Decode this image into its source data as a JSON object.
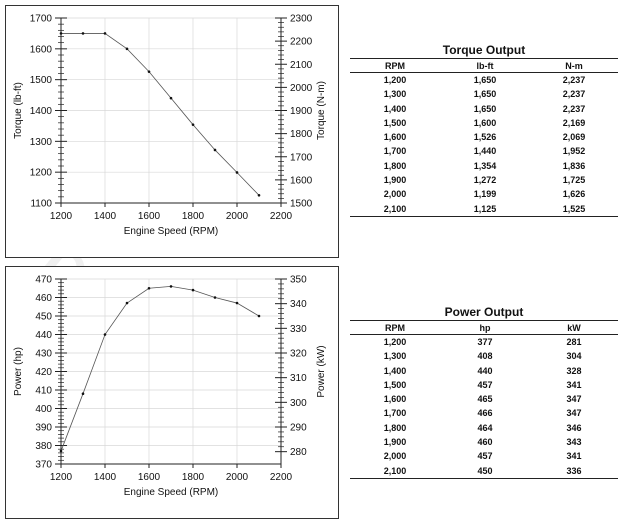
{
  "watermark": "DURAMAC",
  "chart_data": [
    {
      "type": "line",
      "id": "torque",
      "xlabel": "Engine Speed (RPM)",
      "ylabel": "Torque (lb-ft)",
      "y2label": "Torque (N-m)",
      "xlim": [
        1200,
        2200
      ],
      "ylim": [
        1100,
        1700
      ],
      "y2lim": [
        1500,
        2300
      ],
      "xticks": [
        1200,
        1400,
        1600,
        1800,
        2000,
        2200
      ],
      "yticks": [
        1100,
        1200,
        1300,
        1400,
        1500,
        1600,
        1700
      ],
      "y2ticks": [
        1500,
        1600,
        1700,
        1800,
        1900,
        2000,
        2100,
        2200,
        2300
      ],
      "grid": true,
      "x": [
        1200,
        1300,
        1400,
        1500,
        1600,
        1700,
        1800,
        1900,
        2000,
        2100
      ],
      "values": [
        1650,
        1650,
        1650,
        1600,
        1526,
        1440,
        1354,
        1272,
        1199,
        1125
      ]
    },
    {
      "type": "line",
      "id": "power",
      "xlabel": "Engine Speed (RPM)",
      "ylabel": "Power (hp)",
      "y2label": "Power (kW)",
      "xlim": [
        1200,
        2200
      ],
      "ylim": [
        370,
        470
      ],
      "y2lim": [
        275,
        350
      ],
      "xticks": [
        1200,
        1400,
        1600,
        1800,
        2000,
        2200
      ],
      "yticks": [
        370,
        380,
        390,
        400,
        410,
        420,
        430,
        440,
        450,
        460,
        470
      ],
      "y2ticks": [
        280,
        290,
        300,
        310,
        320,
        330,
        340,
        350
      ],
      "grid": true,
      "x": [
        1200,
        1300,
        1400,
        1500,
        1600,
        1700,
        1800,
        1900,
        2000,
        2100
      ],
      "values": [
        377,
        408,
        440,
        457,
        465,
        466,
        464,
        460,
        457,
        450
      ]
    }
  ],
  "torque_table": {
    "title": "Torque Output",
    "headers": [
      "RPM",
      "lb-ft",
      "N-m"
    ],
    "rows": [
      [
        "1,200",
        "1,650",
        "2,237"
      ],
      [
        "1,300",
        "1,650",
        "2,237"
      ],
      [
        "1,400",
        "1,650",
        "2,237"
      ],
      [
        "1,500",
        "1,600",
        "2,169"
      ],
      [
        "1,600",
        "1,526",
        "2,069"
      ],
      [
        "1,700",
        "1,440",
        "1,952"
      ],
      [
        "1,800",
        "1,354",
        "1,836"
      ],
      [
        "1,900",
        "1,272",
        "1,725"
      ],
      [
        "2,000",
        "1,199",
        "1,626"
      ],
      [
        "2,100",
        "1,125",
        "1,525"
      ]
    ]
  },
  "power_table": {
    "title": "Power Output",
    "headers": [
      "RPM",
      "hp",
      "kW"
    ],
    "rows": [
      [
        "1,200",
        "377",
        "281"
      ],
      [
        "1,300",
        "408",
        "304"
      ],
      [
        "1,400",
        "440",
        "328"
      ],
      [
        "1,500",
        "457",
        "341"
      ],
      [
        "1,600",
        "465",
        "347"
      ],
      [
        "1,700",
        "466",
        "347"
      ],
      [
        "1,800",
        "464",
        "346"
      ],
      [
        "1,900",
        "460",
        "343"
      ],
      [
        "2,000",
        "457",
        "341"
      ],
      [
        "2,100",
        "450",
        "336"
      ]
    ]
  }
}
